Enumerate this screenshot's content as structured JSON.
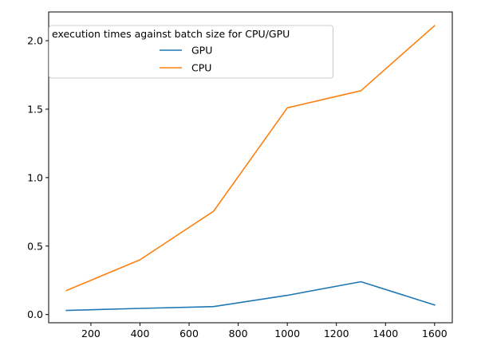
{
  "chart_data": {
    "type": "line",
    "title": "",
    "xlabel": "",
    "ylabel": "",
    "x": [
      100,
      400,
      700,
      1000,
      1300,
      1600
    ],
    "series": [
      {
        "name": "GPU",
        "color": "#1f77b4",
        "values": [
          0.03,
          0.045,
          0.058,
          0.14,
          0.24,
          0.07
        ]
      },
      {
        "name": "CPU",
        "color": "#ff7f0e",
        "values": [
          0.175,
          0.4,
          0.755,
          1.51,
          1.635,
          2.11
        ]
      }
    ],
    "xlim": [
      28,
      1672
    ],
    "ylim": [
      -0.06,
      2.21
    ],
    "xticks": [
      200,
      400,
      600,
      800,
      1000,
      1200,
      1400,
      1600
    ],
    "xtick_labels": [
      "200",
      "400",
      "600",
      "800",
      "1000",
      "1200",
      "1400",
      "1600"
    ],
    "yticks": [
      0.0,
      0.5,
      1.0,
      1.5,
      2.0
    ],
    "ytick_labels": [
      "0.0",
      "0.5",
      "1.0",
      "1.5",
      "2.0"
    ],
    "grid": false,
    "legend": {
      "title": "execution times against batch size for CPU/GPU",
      "placement": "top-left"
    }
  }
}
